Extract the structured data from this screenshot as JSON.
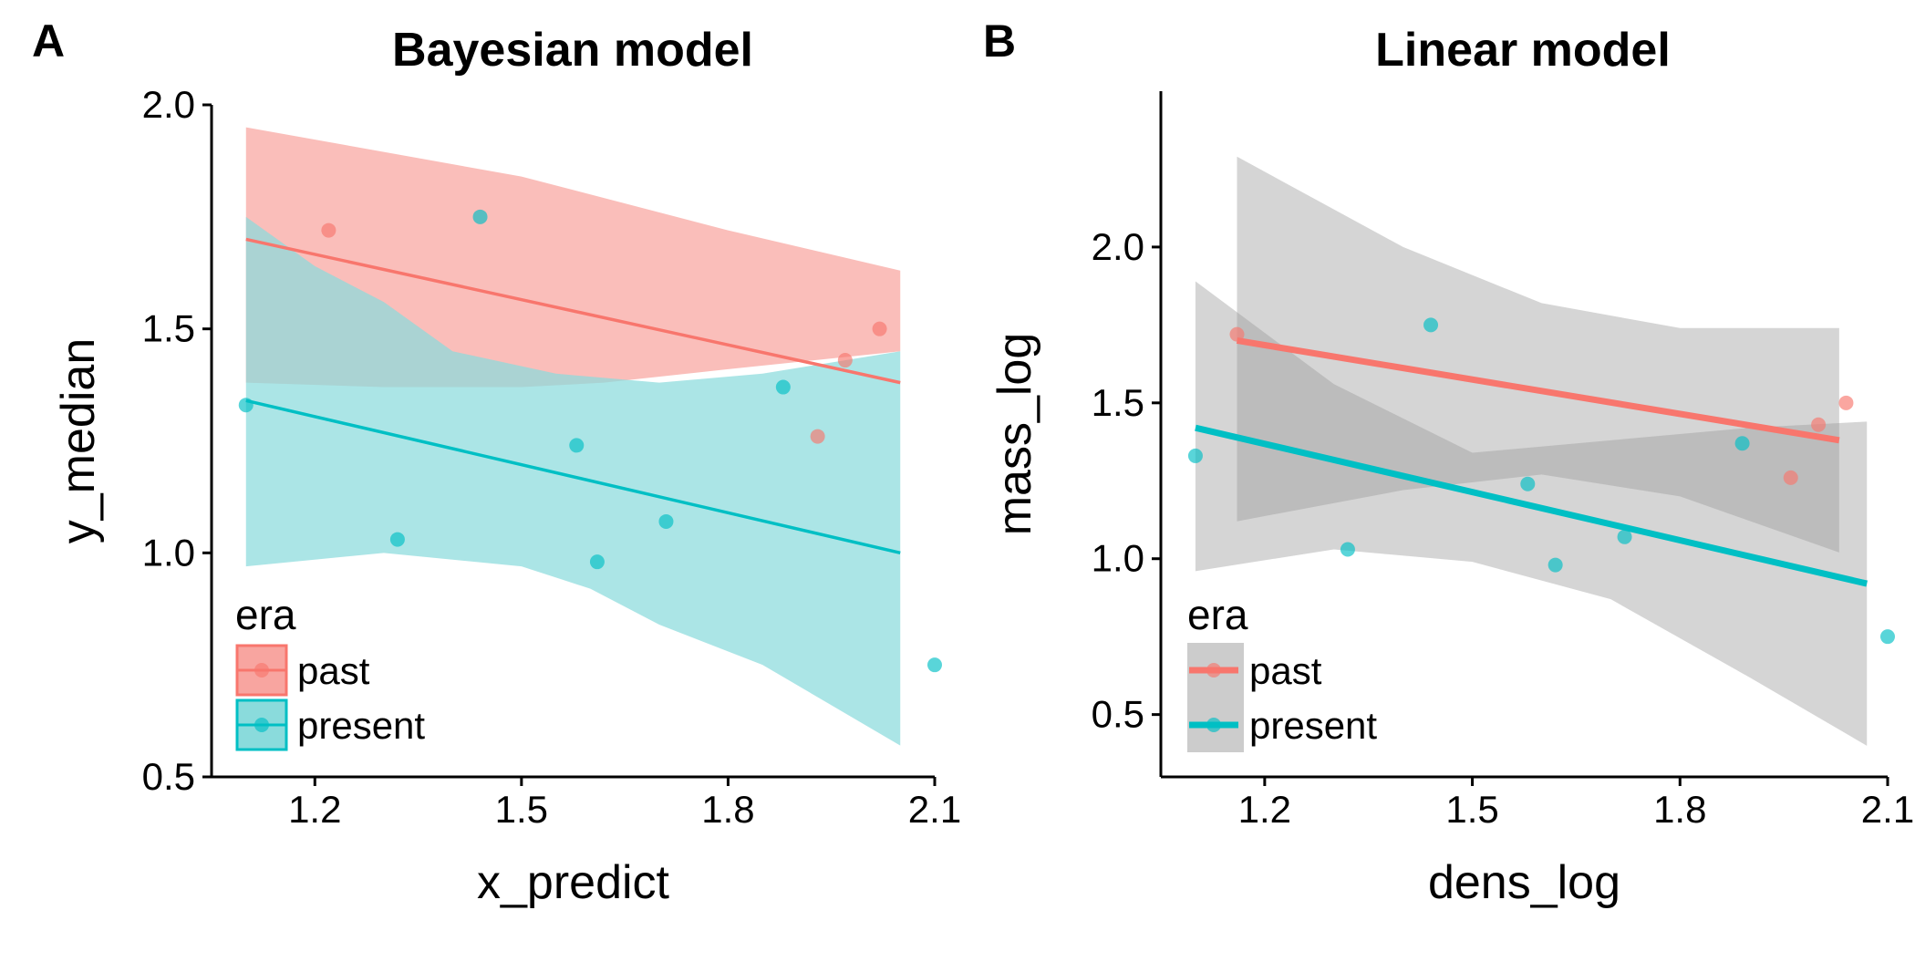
{
  "chart_data": [
    {
      "panel_letter": "A",
      "type": "line",
      "title": "Bayesian model",
      "xlabel": "x_predict",
      "ylabel": "y_median",
      "xlim": [
        1.05,
        2.1
      ],
      "ylim": [
        0.5,
        2.0
      ],
      "xticks": [
        "1.2",
        "1.5",
        "1.8",
        "2.1"
      ],
      "yticks": [
        "0.5",
        "1.0",
        "1.5",
        "2.0"
      ],
      "grid": false,
      "legend": {
        "title": "era",
        "position": "bottom-left",
        "entries": [
          "past",
          "present"
        ]
      },
      "series": [
        {
          "name": "past",
          "color": "#F8766D",
          "fill": "#F8A5A0",
          "line": [
            [
              1.1,
              1.7
            ],
            [
              2.05,
              1.38
            ]
          ],
          "band_upper": [
            [
              1.1,
              1.95
            ],
            [
              1.5,
              1.84
            ],
            [
              1.8,
              1.72
            ],
            [
              2.05,
              1.63
            ]
          ],
          "band_lower": [
            [
              1.1,
              1.38
            ],
            [
              1.3,
              1.37
            ],
            [
              1.5,
              1.37
            ],
            [
              1.62,
              1.38
            ],
            [
              1.8,
              1.41
            ],
            [
              2.05,
              1.45
            ]
          ],
          "points": [
            [
              1.22,
              1.72
            ],
            [
              1.97,
              1.43
            ],
            [
              2.02,
              1.5
            ],
            [
              1.93,
              1.26
            ]
          ]
        },
        {
          "name": "present",
          "color": "#00BFC4",
          "fill": "#8ADBDC",
          "line": [
            [
              1.1,
              1.34
            ],
            [
              2.05,
              1.0
            ]
          ],
          "band_upper": [
            [
              1.1,
              1.75
            ],
            [
              1.2,
              1.64
            ],
            [
              1.3,
              1.56
            ],
            [
              1.4,
              1.45
            ],
            [
              1.55,
              1.4
            ],
            [
              1.7,
              1.38
            ],
            [
              1.85,
              1.4
            ],
            [
              2.05,
              1.45
            ]
          ],
          "band_lower": [
            [
              1.1,
              0.97
            ],
            [
              1.3,
              1.0
            ],
            [
              1.5,
              0.97
            ],
            [
              1.6,
              0.92
            ],
            [
              1.7,
              0.84
            ],
            [
              1.85,
              0.75
            ],
            [
              2.05,
              0.57
            ]
          ],
          "points": [
            [
              1.1,
              1.33
            ],
            [
              1.32,
              1.03
            ],
            [
              1.44,
              1.75
            ],
            [
              1.58,
              1.24
            ],
            [
              1.61,
              0.98
            ],
            [
              1.71,
              1.07
            ],
            [
              1.88,
              1.37
            ],
            [
              2.1,
              0.75
            ]
          ]
        }
      ]
    },
    {
      "panel_letter": "B",
      "type": "line",
      "title": "Linear model",
      "xlabel": "dens_log",
      "ylabel": "mass_log",
      "xlim": [
        1.05,
        2.1
      ],
      "ylim": [
        0.3,
        2.5
      ],
      "xticks": [
        "1.2",
        "1.5",
        "1.8",
        "2.1"
      ],
      "yticks": [
        "0.5",
        "1.0",
        "1.5",
        "2.0"
      ],
      "grid": false,
      "legend": {
        "title": "era",
        "position": "bottom-left",
        "entries": [
          "past",
          "present"
        ]
      },
      "series": [
        {
          "name": "past",
          "color": "#F8766D",
          "fill": "#9A9A9A",
          "line": [
            [
              1.16,
              1.7
            ],
            [
              2.03,
              1.38
            ]
          ],
          "band_upper": [
            [
              1.16,
              2.29
            ],
            [
              1.4,
              2.0
            ],
            [
              1.6,
              1.82
            ],
            [
              1.8,
              1.74
            ],
            [
              2.03,
              1.74
            ]
          ],
          "band_lower": [
            [
              1.16,
              1.12
            ],
            [
              1.4,
              1.22
            ],
            [
              1.6,
              1.27
            ],
            [
              1.8,
              1.2
            ],
            [
              2.03,
              1.02
            ]
          ],
          "points": [
            [
              1.16,
              1.72
            ],
            [
              1.96,
              1.26
            ],
            [
              2.0,
              1.43
            ],
            [
              2.04,
              1.5
            ]
          ]
        },
        {
          "name": "present",
          "color": "#00BFC4",
          "fill": "#9A9A9A",
          "line": [
            [
              1.1,
              1.42
            ],
            [
              2.07,
              0.92
            ]
          ],
          "band_upper": [
            [
              1.1,
              1.89
            ],
            [
              1.3,
              1.56
            ],
            [
              1.5,
              1.34
            ],
            [
              1.7,
              1.38
            ],
            [
              1.9,
              1.42
            ],
            [
              2.07,
              1.44
            ]
          ],
          "band_lower": [
            [
              1.1,
              0.96
            ],
            [
              1.3,
              1.03
            ],
            [
              1.5,
              0.99
            ],
            [
              1.7,
              0.87
            ],
            [
              1.9,
              0.62
            ],
            [
              2.07,
              0.4
            ]
          ],
          "points": [
            [
              1.1,
              1.33
            ],
            [
              1.32,
              1.03
            ],
            [
              1.44,
              1.75
            ],
            [
              1.58,
              1.24
            ],
            [
              1.62,
              0.98
            ],
            [
              1.72,
              1.07
            ],
            [
              1.89,
              1.37
            ],
            [
              2.1,
              0.75
            ]
          ]
        }
      ]
    }
  ]
}
